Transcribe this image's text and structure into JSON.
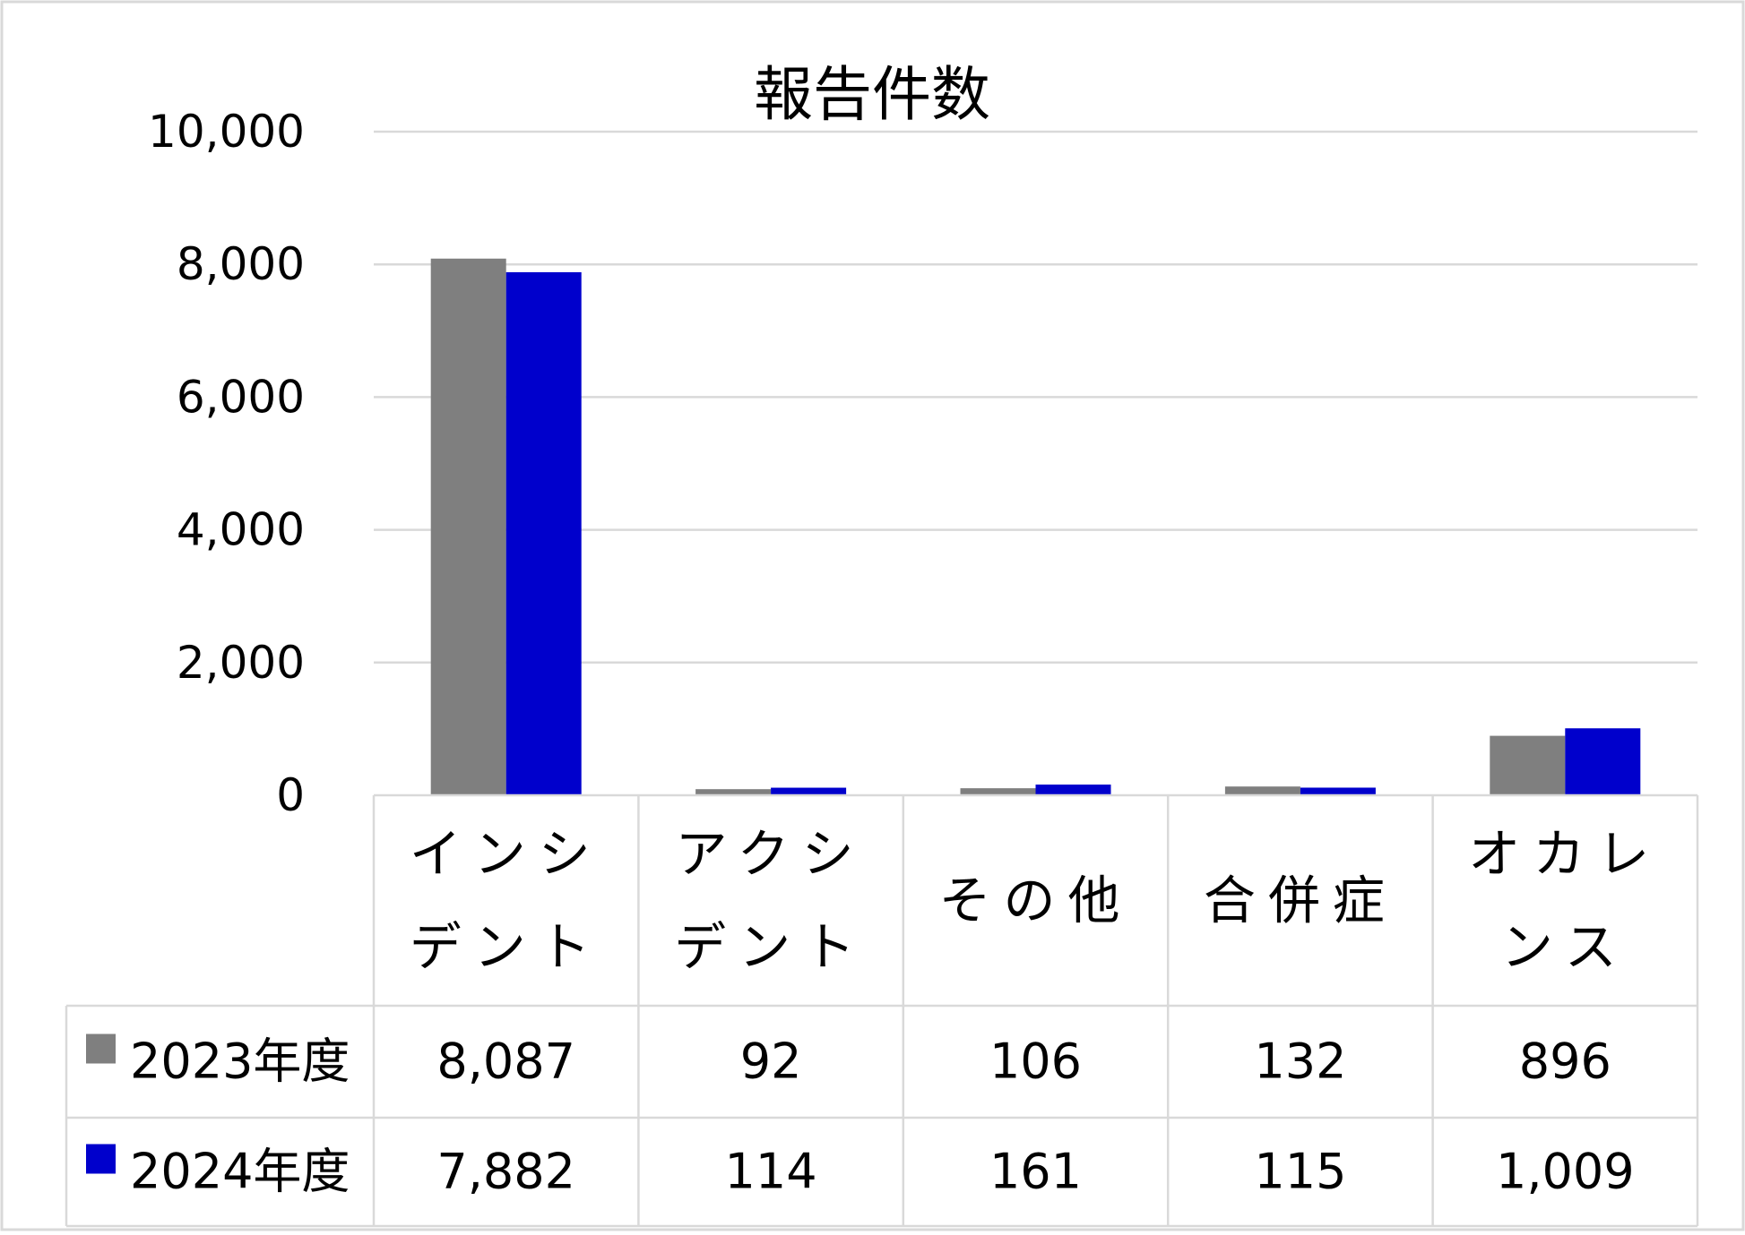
{
  "chart_data": {
    "type": "bar",
    "title": "報告件数",
    "categories": [
      [
        "インシ",
        "デント"
      ],
      [
        "アクシ",
        "デント"
      ],
      [
        "その他"
      ],
      [
        "合併症"
      ],
      [
        "オカレ",
        "ンス"
      ]
    ],
    "series": [
      {
        "name": "2023年度",
        "color": "#7f7f7f",
        "values": [
          8087,
          92,
          106,
          132,
          896
        ]
      },
      {
        "name": "2024年度",
        "color": "#0000cc",
        "values": [
          7882,
          114,
          161,
          115,
          1009
        ]
      }
    ],
    "table_values": [
      [
        "8,087",
        "92",
        "106",
        "132",
        "896"
      ],
      [
        "7,882",
        "114",
        "161",
        "115",
        "1,009"
      ]
    ],
    "y_ticks": [
      "0",
      "2,000",
      "4,000",
      "6,000",
      "8,000",
      "10,000"
    ],
    "ylim": [
      0,
      10000
    ],
    "grid": true,
    "legend": "data-table"
  }
}
